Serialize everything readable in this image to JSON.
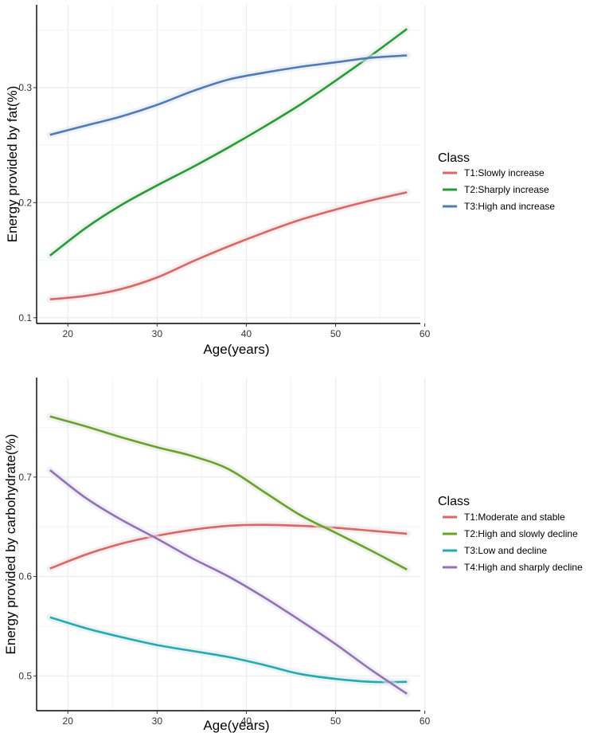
{
  "chart_data": [
    {
      "type": "line",
      "id": "fat",
      "xlabel": "Age(years)",
      "ylabel": "Energy provided by fat(%)",
      "xlim": [
        16.5,
        59.5
      ],
      "ylim": [
        0.095,
        0.372
      ],
      "xticks": [
        "20",
        "30",
        "40",
        "50",
        "60"
      ],
      "yticks": [
        "0.1",
        "0.2",
        "0.3"
      ],
      "legend_title": "Class",
      "legend_position": "right",
      "grid": true,
      "series": [
        {
          "name": "T1:Slowly increase",
          "color": "#E5625E",
          "x": [
            18,
            22,
            26,
            30,
            34,
            38,
            42,
            46,
            50,
            54,
            58
          ],
          "y": [
            0.116,
            0.119,
            0.125,
            0.135,
            0.149,
            0.162,
            0.174,
            0.185,
            0.194,
            0.202,
            0.209
          ]
        },
        {
          "name": "T2:Sharply increase",
          "color": "#1FA02F",
          "x": [
            18,
            22,
            26,
            30,
            34,
            38,
            42,
            46,
            50,
            54,
            58
          ],
          "y": [
            0.154,
            0.178,
            0.198,
            0.215,
            0.231,
            0.248,
            0.266,
            0.285,
            0.306,
            0.328,
            0.351
          ]
        },
        {
          "name": "T3:High and increase",
          "color": "#4A7CC4",
          "x": [
            18,
            22,
            26,
            30,
            34,
            38,
            42,
            46,
            50,
            54,
            58
          ],
          "y": [
            0.259,
            0.267,
            0.275,
            0.285,
            0.297,
            0.307,
            0.313,
            0.318,
            0.322,
            0.326,
            0.328
          ]
        }
      ]
    },
    {
      "type": "line",
      "id": "carbohydrate",
      "xlabel": "Age(years)",
      "ylabel": "Energy provided by carbohydrate(%)",
      "xlim": [
        16.5,
        59.5
      ],
      "ylim": [
        0.465,
        0.8
      ],
      "xticks": [
        "20",
        "30",
        "40",
        "50",
        "60"
      ],
      "yticks": [
        "0.5",
        "0.6",
        "0.7"
      ],
      "legend_title": "Class",
      "legend_position": "right",
      "grid": true,
      "series": [
        {
          "name": "T1:Moderate and stable",
          "color": "#E5625E",
          "x": [
            18,
            22,
            26,
            30,
            34,
            38,
            42,
            46,
            50,
            54,
            58
          ],
          "y": [
            0.608,
            0.622,
            0.633,
            0.641,
            0.647,
            0.651,
            0.652,
            0.651,
            0.649,
            0.646,
            0.643
          ]
        },
        {
          "name": "T2:High and slowly decline",
          "color": "#66A61E",
          "x": [
            18,
            22,
            26,
            30,
            34,
            38,
            42,
            46,
            50,
            54,
            58
          ],
          "y": [
            0.761,
            0.751,
            0.74,
            0.73,
            0.721,
            0.708,
            0.685,
            0.662,
            0.644,
            0.626,
            0.607
          ]
        },
        {
          "name": "T3:Low and decline",
          "color": "#17B0B8",
          "x": [
            18,
            22,
            26,
            30,
            34,
            38,
            42,
            46,
            50,
            54,
            58
          ],
          "y": [
            0.559,
            0.548,
            0.539,
            0.531,
            0.525,
            0.519,
            0.511,
            0.502,
            0.497,
            0.494,
            0.494
          ]
        },
        {
          "name": "T4:High and sharply decline",
          "color": "#9370BE",
          "x": [
            18,
            22,
            26,
            30,
            34,
            38,
            42,
            46,
            50,
            54,
            58
          ],
          "y": [
            0.707,
            0.679,
            0.657,
            0.638,
            0.618,
            0.6,
            0.579,
            0.556,
            0.532,
            0.506,
            0.482
          ]
        }
      ]
    }
  ]
}
